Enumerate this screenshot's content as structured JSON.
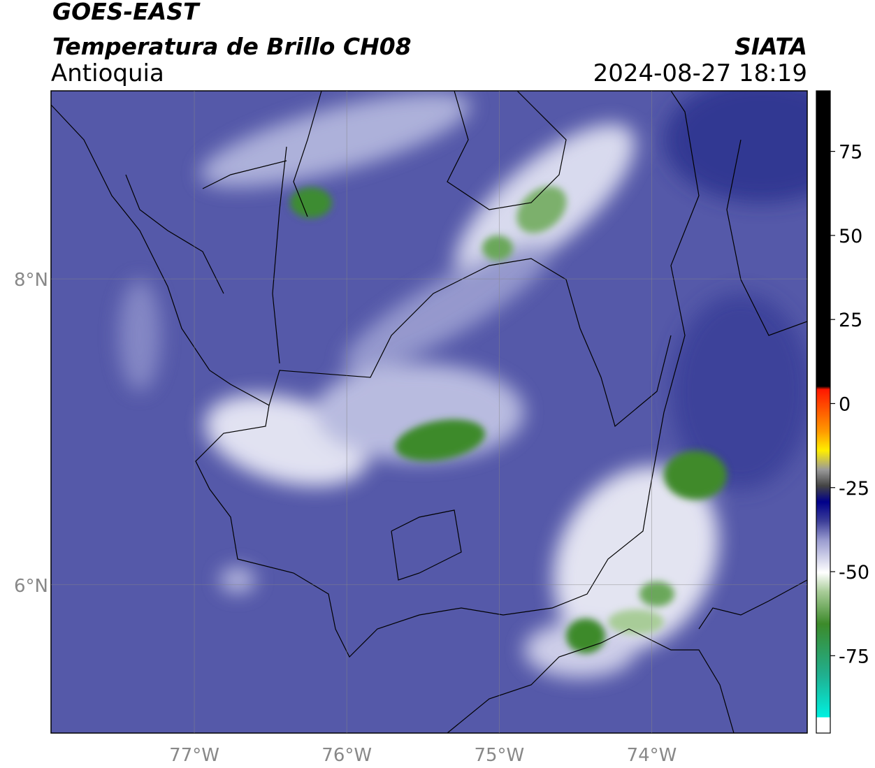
{
  "header": {
    "title": "GOES-EAST",
    "subtitle": "Temperatura de Brillo CH08",
    "region": "Antioquia",
    "source": "SIATA",
    "datetime": "2024-08-27 18:19"
  },
  "map": {
    "xlim": [
      -77.94,
      -72.98
    ],
    "ylim": [
      5.03,
      9.23
    ],
    "xticks": [
      {
        "value": -77,
        "label": "77°W"
      },
      {
        "value": -76,
        "label": "76°W"
      },
      {
        "value": -75,
        "label": "75°W"
      },
      {
        "value": -74,
        "label": "74°W"
      }
    ],
    "yticks": [
      {
        "value": 8,
        "label": "8°N"
      },
      {
        "value": 6,
        "label": "6°N"
      }
    ]
  },
  "colorbar": {
    "range": [
      -98,
      93
    ],
    "ticks": [
      75,
      50,
      25,
      0,
      -25,
      -50,
      -75
    ]
  }
}
